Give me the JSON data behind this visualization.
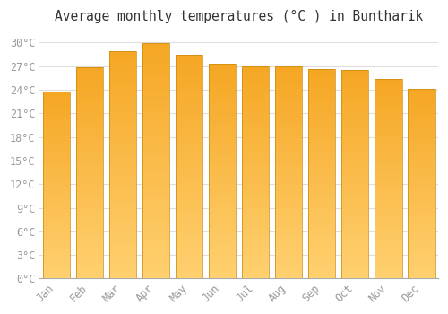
{
  "title": "Average monthly temperatures (°C ) in Buntharik",
  "months": [
    "Jan",
    "Feb",
    "Mar",
    "Apr",
    "May",
    "Jun",
    "Jul",
    "Aug",
    "Sep",
    "Oct",
    "Nov",
    "Dec"
  ],
  "values": [
    23.8,
    26.9,
    28.9,
    29.9,
    28.4,
    27.3,
    27.0,
    27.0,
    26.6,
    26.5,
    25.4,
    24.1
  ],
  "bar_color_top": "#F5A623",
  "bar_color_bottom": "#FFD070",
  "bar_edge_color": "#C8880A",
  "background_color": "#FFFFFF",
  "grid_color": "#DDDDDD",
  "title_color": "#333333",
  "tick_label_color": "#999999",
  "ylim": [
    0,
    31.5
  ],
  "yticks": [
    0,
    3,
    6,
    9,
    12,
    15,
    18,
    21,
    24,
    27,
    30
  ],
  "title_fontsize": 10.5,
  "tick_fontsize": 8.5
}
